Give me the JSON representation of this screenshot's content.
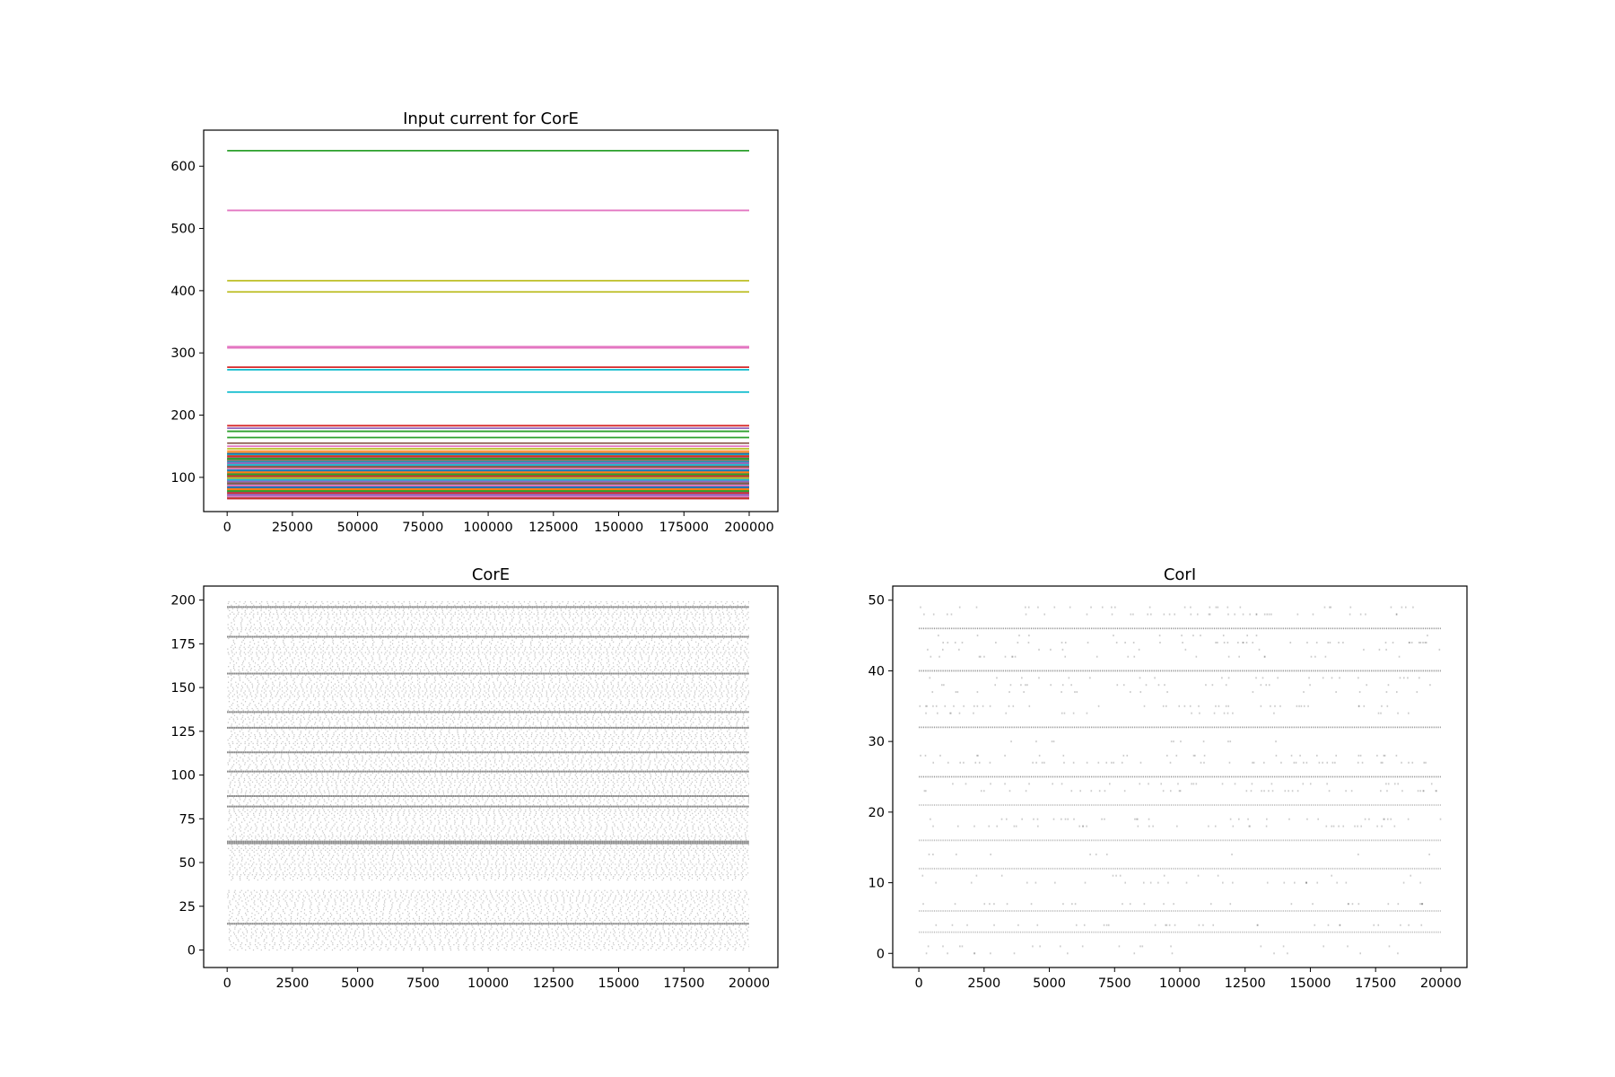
{
  "chart_data": [
    {
      "type": "line",
      "title": "Input current for CorE",
      "xlim": [
        -9000,
        211000
      ],
      "ylim": [
        45,
        658
      ],
      "x_range": [
        0,
        200000
      ],
      "xticks": [
        0,
        25000,
        50000,
        75000,
        100000,
        125000,
        150000,
        175000,
        200000
      ],
      "yticks": [
        100,
        200,
        300,
        400,
        500,
        600
      ],
      "series_description": "Constant input currents, one flat line per neuron",
      "series": [
        {
          "y": 625,
          "color": "#2ca02c"
        },
        {
          "y": 529,
          "color": "#e377c2"
        },
        {
          "y": 416,
          "color": "#bcbd22"
        },
        {
          "y": 398,
          "color": "#bcbd22"
        },
        {
          "y": 310,
          "color": "#e377c2"
        },
        {
          "y": 308,
          "color": "#e377c2"
        },
        {
          "y": 277,
          "color": "#d62728"
        },
        {
          "y": 273,
          "color": "#17becf"
        },
        {
          "y": 237,
          "color": "#17becf"
        },
        {
          "y": 183,
          "color": "#d62728"
        },
        {
          "y": 179,
          "color": "#9467bd"
        },
        {
          "y": 174,
          "color": "#2ca02c"
        },
        {
          "y": 164,
          "color": "#2ca02c"
        },
        {
          "y": 155,
          "color": "#8c564b"
        },
        {
          "y": 150,
          "color": "#e377c2"
        },
        {
          "y": 146,
          "color": "#bcbd22"
        },
        {
          "y": 142,
          "color": "#ff7f0e"
        },
        {
          "y": 138,
          "color": "#1f77b4"
        },
        {
          "y": 134,
          "color": "#d62728"
        },
        {
          "y": 130,
          "color": "#2ca02c"
        },
        {
          "y": 127,
          "color": "#7f7f7f"
        },
        {
          "y": 123,
          "color": "#9467bd"
        },
        {
          "y": 120,
          "color": "#17becf"
        },
        {
          "y": 117,
          "color": "#8c564b"
        },
        {
          "y": 114,
          "color": "#e377c2"
        },
        {
          "y": 111,
          "color": "#1f77b4"
        },
        {
          "y": 108,
          "color": "#ff7f0e"
        },
        {
          "y": 105,
          "color": "#2ca02c"
        },
        {
          "y": 102,
          "color": "#d62728"
        },
        {
          "y": 99,
          "color": "#bcbd22"
        },
        {
          "y": 96,
          "color": "#17becf"
        },
        {
          "y": 93,
          "color": "#9467bd"
        },
        {
          "y": 90,
          "color": "#8c564b"
        },
        {
          "y": 87,
          "color": "#e377c2"
        },
        {
          "y": 84,
          "color": "#1f77b4"
        },
        {
          "y": 81,
          "color": "#ff7f0e"
        },
        {
          "y": 78,
          "color": "#2ca02c"
        },
        {
          "y": 75,
          "color": "#d62728"
        },
        {
          "y": 72,
          "color": "#9467bd"
        },
        {
          "y": 69,
          "color": "#e377c2"
        },
        {
          "y": 66,
          "color": "#d62728"
        }
      ]
    },
    {
      "type": "scatter",
      "title": "CorE",
      "xlim": [
        -900,
        21100
      ],
      "ylim": [
        -10,
        208
      ],
      "x_range": [
        0,
        20000
      ],
      "xticks": [
        0,
        2500,
        5000,
        7500,
        10000,
        12500,
        15000,
        17500,
        20000
      ],
      "yticks": [
        0,
        25,
        50,
        75,
        100,
        125,
        150,
        175,
        200
      ],
      "n_neurons": 200,
      "marker_color": "#000000",
      "dense_rows": [
        15,
        61,
        62,
        82,
        88,
        102,
        113,
        127,
        136,
        158,
        179,
        196
      ],
      "silent_rows": [
        35,
        36,
        37,
        38,
        39
      ]
    },
    {
      "type": "scatter",
      "title": "CorI",
      "xlim": [
        -1000,
        21000
      ],
      "ylim": [
        -2,
        52
      ],
      "x_range": [
        0,
        20000
      ],
      "xticks": [
        0,
        2500,
        5000,
        7500,
        10000,
        12500,
        15000,
        17500,
        20000
      ],
      "yticks": [
        0,
        10,
        20,
        30,
        40,
        50
      ],
      "n_neurons": 50,
      "marker_color": "#000000",
      "dense_rows": [
        3,
        6,
        12,
        16,
        21,
        25,
        32,
        40,
        46
      ],
      "sparse_rows": [
        0,
        1,
        4,
        7,
        10,
        11,
        14,
        18,
        19,
        23,
        24,
        27,
        28,
        30,
        34,
        35,
        37,
        38,
        39,
        42,
        43,
        44,
        45,
        48,
        49
      ]
    }
  ]
}
